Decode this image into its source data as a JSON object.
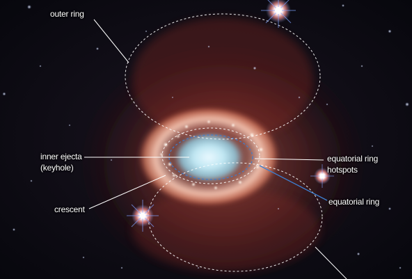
{
  "labels": {
    "outer_ring": "outer ring",
    "inner_ejecta_line1": "inner ejecta",
    "inner_ejecta_line2": "(keyhole)",
    "crescent": "crescent",
    "equatorial_ring_hotspots_line1": "equatorial ring",
    "equatorial_ring_hotspots_line2": "hotspots",
    "equatorial_ring": "equatorial ring"
  },
  "colors": {
    "sky": "#0b0a14",
    "nebula_core": "#bfe6f2",
    "ring_glow": "#f2b8a6",
    "outer_glow": "#c0503e",
    "star": "#ffffff",
    "star_halo": "#6a8fd6",
    "leader_white": "#ffffff",
    "leader_blue": "#3d7fd1"
  }
}
